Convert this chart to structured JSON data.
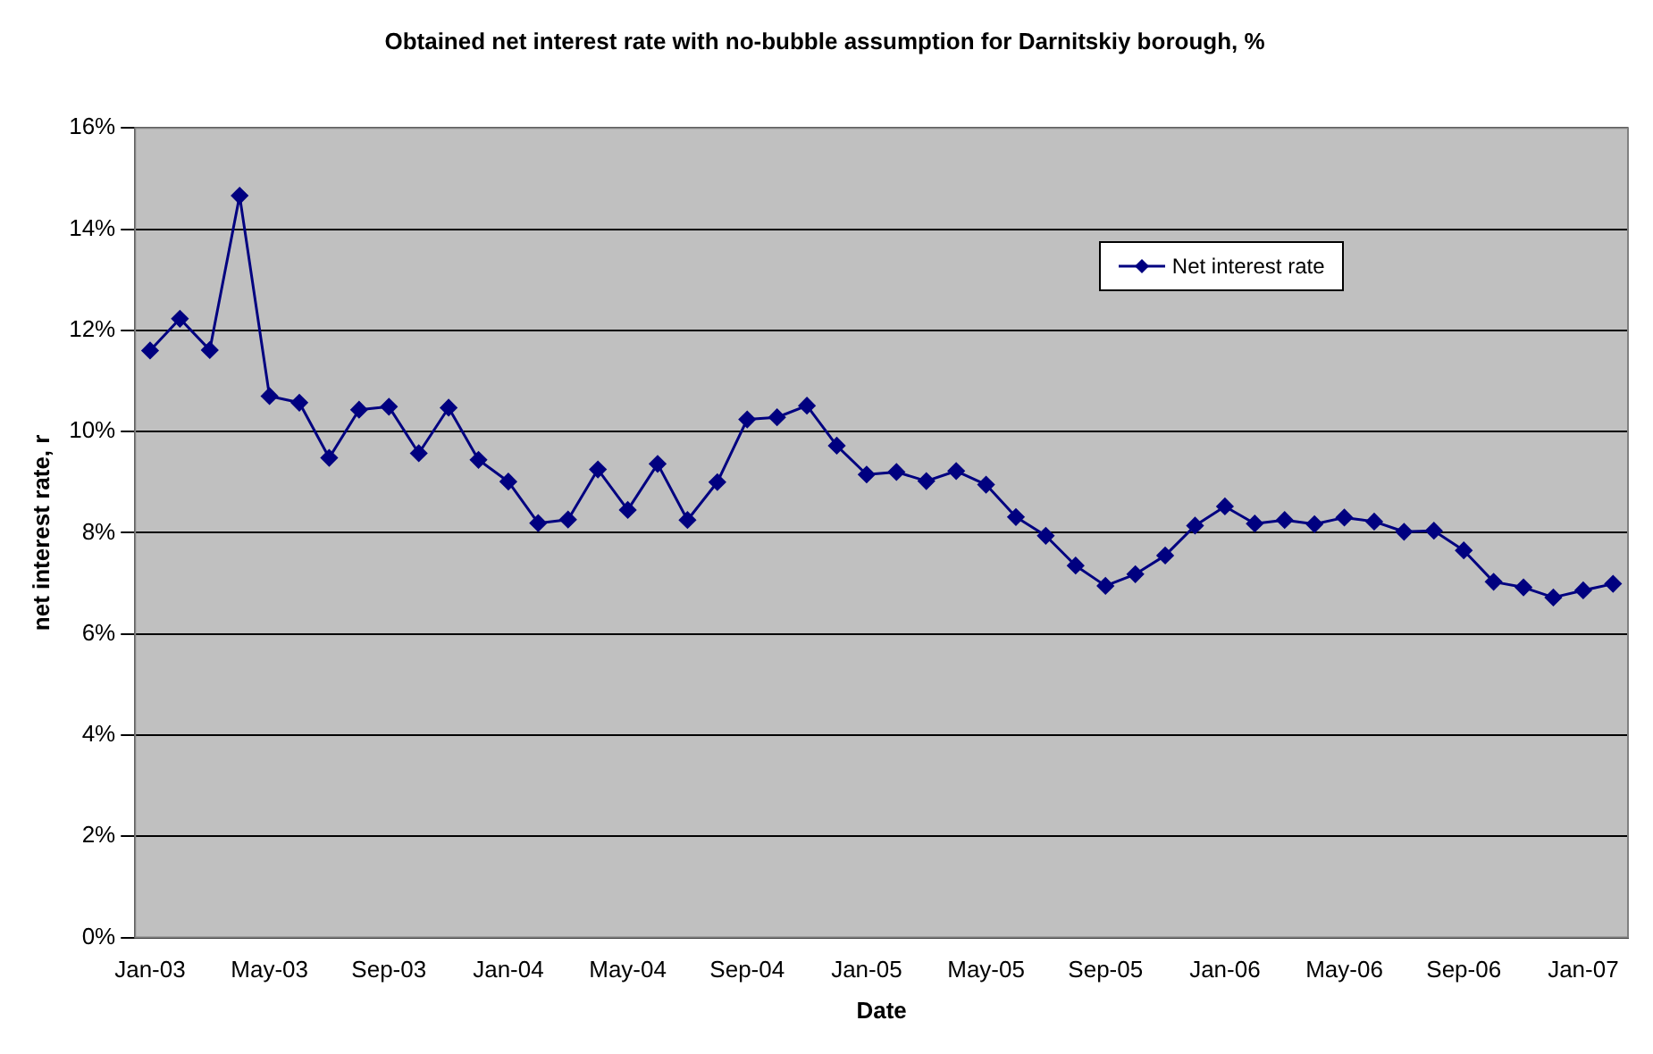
{
  "chart_data": {
    "type": "line",
    "title": "Obtained net interest rate with no-bubble assumption for Darnitskiy borough, %",
    "xlabel": "Date",
    "ylabel": "net interest rate, r",
    "categories": [
      "Jan-03",
      null,
      null,
      null,
      "May-03",
      null,
      null,
      null,
      "Sep-03",
      null,
      null,
      null,
      "Jan-04",
      null,
      null,
      null,
      "May-04",
      null,
      null,
      null,
      "Sep-04",
      null,
      null,
      null,
      "Jan-05",
      null,
      null,
      null,
      "May-05",
      null,
      null,
      null,
      "Sep-05",
      null,
      null,
      null,
      "Jan-06",
      null,
      null,
      null,
      "May-06",
      null,
      null,
      null,
      "Sep-06",
      null,
      null,
      null,
      "Jan-07",
      null
    ],
    "series": [
      {
        "name": "Net interest rate",
        "color": "#000080",
        "values": [
          11.6,
          12.23,
          11.61,
          14.66,
          10.7,
          10.57,
          9.48,
          10.43,
          10.49,
          9.57,
          10.47,
          9.44,
          9.01,
          8.19,
          8.26,
          9.25,
          8.45,
          9.36,
          8.25,
          9.0,
          10.24,
          10.28,
          10.51,
          9.72,
          9.15,
          9.2,
          9.02,
          9.22,
          8.95,
          8.31,
          7.94,
          7.35,
          6.95,
          7.18,
          7.55,
          8.14,
          8.52,
          8.18,
          8.25,
          8.17,
          8.3,
          8.22,
          8.02,
          8.04,
          7.65,
          7.03,
          6.92,
          6.72,
          6.86,
          6.99
        ]
      }
    ],
    "ylim": [
      0,
      16
    ],
    "yticks": [
      {
        "value": 0,
        "label": "0%"
      },
      {
        "value": 2,
        "label": "2%"
      },
      {
        "value": 4,
        "label": "4%"
      },
      {
        "value": 6,
        "label": "6%"
      },
      {
        "value": 8,
        "label": "8%"
      },
      {
        "value": 10,
        "label": "10%"
      },
      {
        "value": 12,
        "label": "12%"
      },
      {
        "value": 14,
        "label": "14%"
      },
      {
        "value": 16,
        "label": "16%"
      }
    ],
    "grid": "y",
    "legend": "top right",
    "marker": "diamond",
    "line_style": "solid"
  }
}
